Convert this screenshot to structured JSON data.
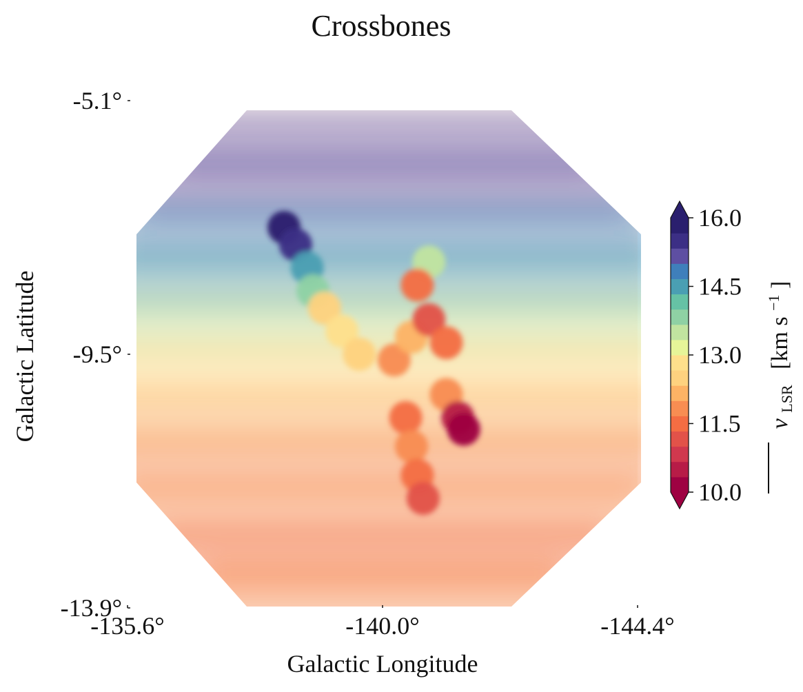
{
  "chart_data": {
    "type": "heatmap",
    "title": "Crossbones",
    "xlabel": "Galactic Longitude",
    "ylabel": "Galactic Latitude",
    "xlim": [
      -135.6,
      -144.4
    ],
    "ylim": [
      -13.9,
      -5.1
    ],
    "xticks": [
      -135.6,
      -140.0,
      -144.4
    ],
    "xtick_labels": [
      "-135.6°",
      "-140.0°",
      "-144.4°"
    ],
    "yticks": [
      -5.1,
      -9.5,
      -13.9
    ],
    "ytick_labels": [
      "-5.1°",
      "-9.5°",
      "-13.9°"
    ],
    "colorbar": {
      "min": 10.0,
      "max": 16.0,
      "ticks": [
        10.0,
        11.5,
        13.0,
        14.5,
        16.0
      ],
      "tick_labels": [
        "10.0",
        "11.5",
        "13.0",
        "14.5",
        "16.0"
      ],
      "label_main": "v",
      "label_sub": "LSR",
      "label_unit": "[km s",
      "label_sup": "−1",
      "label_close": "]",
      "colors": [
        "#9e0142",
        "#b71c47",
        "#d0384e",
        "#e25249",
        "#f46d43",
        "#f88d52",
        "#fdb365",
        "#fed27f",
        "#fee08b",
        "#e6f598",
        "#c1e4a0",
        "#8fd1a4",
        "#66c2a5",
        "#4a9fb3",
        "#3f7fbb",
        "#5e4fa2",
        "#3c2f85",
        "#2a1f6e"
      ],
      "extend": "both"
    },
    "background_field": [
      {
        "lat": -5.8,
        "lon_start": -136.9,
        "lon_end": -143.2,
        "v": 15.3
      },
      {
        "lat": -6.6,
        "lon_start": -136.3,
        "lon_end": -143.8,
        "v": 15.2
      },
      {
        "lat": -7.4,
        "lon_start": -135.9,
        "lon_end": -144.2,
        "v": 14.9
      },
      {
        "lat": -8.2,
        "lon_start": -135.7,
        "lon_end": -144.3,
        "v": 14.4
      },
      {
        "lat": -9.0,
        "lon_start": -135.6,
        "lon_end": -144.4,
        "v": 13.6
      },
      {
        "lat": -9.8,
        "lon_start": -135.6,
        "lon_end": -144.4,
        "v": 12.9
      },
      {
        "lat": -10.6,
        "lon_start": -135.6,
        "lon_end": -144.4,
        "v": 12.3
      },
      {
        "lat": -11.4,
        "lon_start": -135.7,
        "lon_end": -144.3,
        "v": 11.9
      },
      {
        "lat": -12.2,
        "lon_start": -136.0,
        "lon_end": -144.0,
        "v": 11.7
      },
      {
        "lat": -13.0,
        "lon_start": -136.6,
        "lon_end": -143.4,
        "v": 11.6
      },
      {
        "lat": -13.6,
        "lon_start": -137.4,
        "lon_end": -142.6,
        "v": 11.8
      }
    ],
    "filament_field": [
      {
        "lon": -138.3,
        "lat": -7.3,
        "v": 15.9
      },
      {
        "lon": -138.5,
        "lat": -7.6,
        "v": 15.4
      },
      {
        "lon": -138.7,
        "lat": -8.0,
        "v": 14.6
      },
      {
        "lon": -138.8,
        "lat": -8.4,
        "v": 13.8
      },
      {
        "lon": -139.0,
        "lat": -8.7,
        "v": 12.6
      },
      {
        "lon": -139.3,
        "lat": -9.1,
        "v": 12.9
      },
      {
        "lon": -139.6,
        "lat": -9.5,
        "v": 12.4
      },
      {
        "lon": -140.2,
        "lat": -9.6,
        "v": 11.9
      },
      {
        "lon": -140.5,
        "lat": -9.2,
        "v": 12.1
      },
      {
        "lon": -140.8,
        "lat": -8.9,
        "v": 11.3
      },
      {
        "lon": -141.1,
        "lat": -9.3,
        "v": 11.4
      },
      {
        "lon": -140.8,
        "lat": -7.9,
        "v": 13.6
      },
      {
        "lon": -140.6,
        "lat": -8.3,
        "v": 11.6
      },
      {
        "lon": -141.1,
        "lat": -10.2,
        "v": 11.8
      },
      {
        "lon": -141.3,
        "lat": -10.6,
        "v": 10.6
      },
      {
        "lon": -141.4,
        "lat": -10.8,
        "v": 10.1
      },
      {
        "lon": -140.4,
        "lat": -10.6,
        "v": 11.6
      },
      {
        "lon": -140.5,
        "lat": -11.1,
        "v": 11.8
      },
      {
        "lon": -140.6,
        "lat": -11.6,
        "v": 11.5
      },
      {
        "lon": -140.7,
        "lat": -12.0,
        "v": 11.3
      }
    ]
  }
}
